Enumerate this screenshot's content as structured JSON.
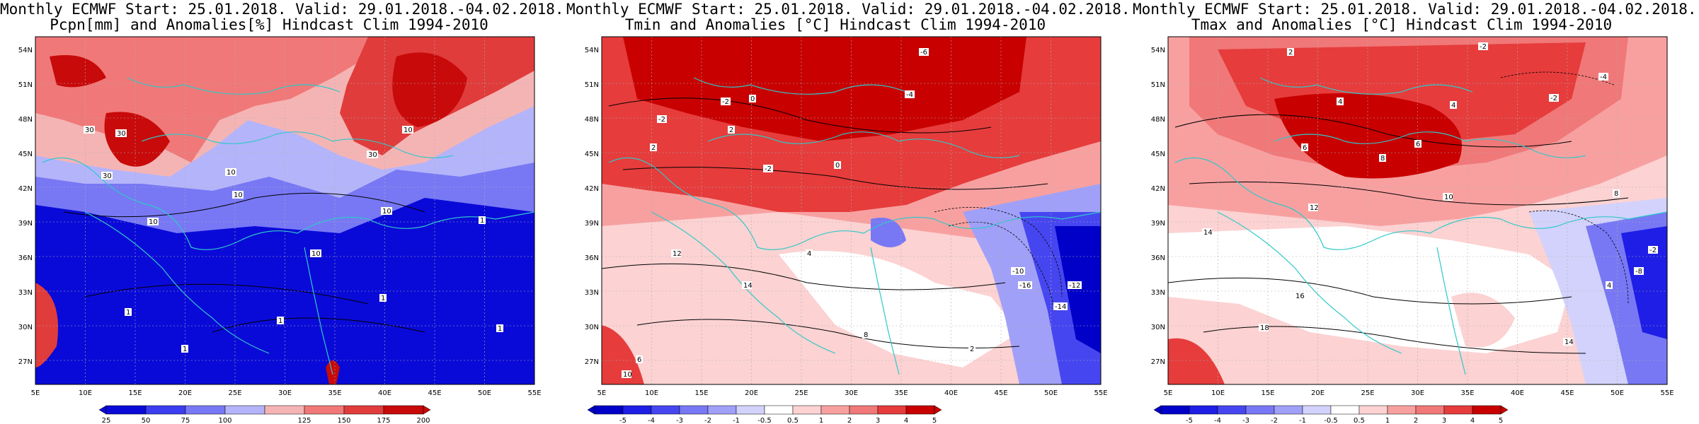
{
  "panels": [
    {
      "title_line1": "Monthly ECMWF Start: 25.01.2018. Valid: 29.01.2018.-04.02.2018.",
      "title_line2": "Pcpn[mm] and Anomalies[%] Hindcast Clim 1994-2010",
      "colorbar_ticks": [
        "25",
        "50",
        "75",
        "100",
        "125",
        "150",
        "175",
        "200"
      ],
      "contour_labels": [
        "30",
        "30",
        "30",
        "30",
        "10",
        "10",
        "10",
        "10",
        "10",
        "10",
        "1",
        "1",
        "1",
        "1",
        "1",
        "1"
      ],
      "colors": [
        "#0a0ad8",
        "#3c3cf0",
        "#7878f5",
        "#b4b4fa",
        "#ffffff",
        "#f5b4b4",
        "#f07878",
        "#e03c3c",
        "#c80a0a"
      ]
    },
    {
      "title_line1": "Monthly ECMWF Start: 25.01.2018. Valid: 29.01.2018.-04.02.2018.",
      "title_line2": "Tmin and Anomalies [°C] Hindcast Clim 1994-2010",
      "colorbar_ticks": [
        "-5",
        "-4",
        "-3",
        "-2",
        "-1",
        "-0.5",
        "0.5",
        "1",
        "2",
        "3",
        "4",
        "5"
      ],
      "contour_labels": [
        "-6",
        "-4",
        "-2",
        "-2",
        "-2",
        "0",
        "0",
        "2",
        "2",
        "2",
        "4",
        "6",
        "-10",
        "-12",
        "-14",
        "-16",
        "12",
        "14",
        "10",
        "8"
      ],
      "colors": [
        "#0000c8",
        "#1e1ee6",
        "#4646f0",
        "#7878f5",
        "#a0a0f8",
        "#d2d2fc",
        "#ffffff",
        "#fcd2d2",
        "#f8a0a0",
        "#f07878",
        "#e63c3c",
        "#c80000"
      ]
    },
    {
      "title_line1": "Monthly ECMWF Start: 25.01.2018. Valid: 29.01.2018.-04.02.2018.",
      "title_line2": "Tmax and Anomalies [°C] Hindcast Clim 1994-2010",
      "colorbar_ticks": [
        "-5",
        "-4",
        "-3",
        "-2",
        "-1",
        "-0.5",
        "0.5",
        "1",
        "2",
        "3",
        "4",
        "5"
      ],
      "contour_labels": [
        "-2",
        "-2",
        "-4",
        "2",
        "4",
        "4",
        "6",
        "6",
        "8",
        "8",
        "10",
        "12",
        "14",
        "16",
        "18",
        "-2",
        "-8",
        "4",
        "14"
      ],
      "colors": [
        "#0000c8",
        "#1e1ee6",
        "#4646f0",
        "#7878f5",
        "#a0a0f8",
        "#d2d2fc",
        "#ffffff",
        "#fcd2d2",
        "#f8a0a0",
        "#f07878",
        "#e63c3c",
        "#c80000"
      ]
    }
  ],
  "lat_ticks": [
    "54N",
    "51N",
    "48N",
    "45N",
    "42N",
    "39N",
    "36N",
    "33N",
    "30N",
    "27N"
  ],
  "lon_ticks": [
    "5E",
    "10E",
    "15E",
    "20E",
    "25E",
    "30E",
    "35E",
    "40E",
    "45E",
    "50E",
    "55E"
  ]
}
